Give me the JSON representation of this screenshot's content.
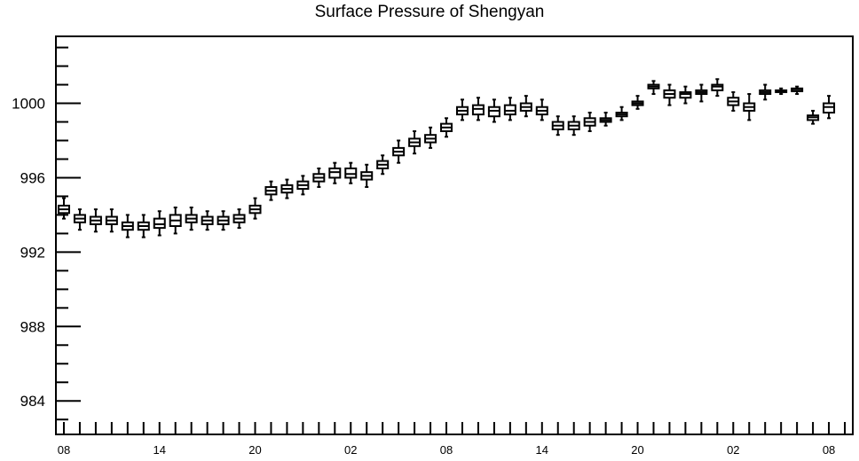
{
  "chart_data": {
    "type": "boxplot",
    "title": "Surface Pressure of Shengyan",
    "xlabel": "",
    "ylabel": "",
    "ylim": [
      982.2,
      1003.6
    ],
    "yticks": [
      984,
      988,
      992,
      996,
      1000
    ],
    "ytick_labels": [
      "984",
      "988",
      "992",
      "996",
      "1000"
    ],
    "xlim": [
      -0.5,
      49.5
    ],
    "xtick_positions": [
      0,
      6,
      12,
      18,
      24,
      30,
      36,
      42,
      48
    ],
    "xtick_labels": [
      "08",
      "14",
      "20",
      "02",
      "08",
      "14",
      "20",
      "02",
      "08"
    ],
    "grid": false,
    "boxes": [
      {
        "index": 0,
        "min": 993.8,
        "q1": 994.1,
        "median": 994.3,
        "q3": 994.5,
        "max": 994.9
      },
      {
        "index": 1,
        "min": 993.2,
        "q1": 993.6,
        "median": 993.8,
        "q3": 994.0,
        "max": 994.3
      },
      {
        "index": 2,
        "min": 993.1,
        "q1": 993.5,
        "median": 993.7,
        "q3": 993.9,
        "max": 994.3
      },
      {
        "index": 3,
        "min": 993.1,
        "q1": 993.5,
        "median": 993.7,
        "q3": 993.9,
        "max": 994.3
      },
      {
        "index": 4,
        "min": 992.8,
        "q1": 993.2,
        "median": 993.4,
        "q3": 993.6,
        "max": 994.0
      },
      {
        "index": 5,
        "min": 992.8,
        "q1": 993.2,
        "median": 993.4,
        "q3": 993.6,
        "max": 994.0
      },
      {
        "index": 6,
        "min": 992.9,
        "q1": 993.3,
        "median": 993.5,
        "q3": 993.8,
        "max": 994.2
      },
      {
        "index": 7,
        "min": 993.0,
        "q1": 993.4,
        "median": 993.7,
        "q3": 994.0,
        "max": 994.4
      },
      {
        "index": 8,
        "min": 993.2,
        "q1": 993.6,
        "median": 993.8,
        "q3": 994.0,
        "max": 994.4
      },
      {
        "index": 9,
        "min": 993.2,
        "q1": 993.5,
        "median": 993.7,
        "q3": 993.9,
        "max": 994.2
      },
      {
        "index": 10,
        "min": 993.2,
        "q1": 993.5,
        "median": 993.7,
        "q3": 993.9,
        "max": 994.2
      },
      {
        "index": 11,
        "min": 993.3,
        "q1": 993.6,
        "median": 993.8,
        "q3": 994.0,
        "max": 994.3
      },
      {
        "index": 12,
        "min": 993.8,
        "q1": 994.1,
        "median": 994.3,
        "q3": 994.5,
        "max": 994.9
      },
      {
        "index": 13,
        "min": 994.8,
        "q1": 995.1,
        "median": 995.3,
        "q3": 995.5,
        "max": 995.8
      },
      {
        "index": 14,
        "min": 994.9,
        "q1": 995.2,
        "median": 995.4,
        "q3": 995.6,
        "max": 995.9
      },
      {
        "index": 15,
        "min": 995.1,
        "q1": 995.4,
        "median": 995.6,
        "q3": 995.8,
        "max": 996.1
      },
      {
        "index": 16,
        "min": 995.5,
        "q1": 995.8,
        "median": 996.0,
        "q3": 996.2,
        "max": 996.5
      },
      {
        "index": 17,
        "min": 995.7,
        "q1": 996.0,
        "median": 996.3,
        "q3": 996.5,
        "max": 996.8
      },
      {
        "index": 18,
        "min": 995.7,
        "q1": 996.0,
        "median": 996.2,
        "q3": 996.5,
        "max": 996.8
      },
      {
        "index": 19,
        "min": 995.5,
        "q1": 995.9,
        "median": 996.1,
        "q3": 996.3,
        "max": 996.7
      },
      {
        "index": 20,
        "min": 996.2,
        "q1": 996.5,
        "median": 996.7,
        "q3": 996.9,
        "max": 997.2
      },
      {
        "index": 21,
        "min": 996.8,
        "q1": 997.2,
        "median": 997.4,
        "q3": 997.6,
        "max": 998.0
      },
      {
        "index": 22,
        "min": 997.3,
        "q1": 997.7,
        "median": 997.9,
        "q3": 998.1,
        "max": 998.5
      },
      {
        "index": 23,
        "min": 997.6,
        "q1": 997.9,
        "median": 998.1,
        "q3": 998.3,
        "max": 998.7
      },
      {
        "index": 24,
        "min": 998.2,
        "q1": 998.5,
        "median": 998.7,
        "q3": 998.9,
        "max": 999.2
      },
      {
        "index": 25,
        "min": 999.1,
        "q1": 999.4,
        "median": 999.6,
        "q3": 999.8,
        "max": 1000.2
      },
      {
        "index": 26,
        "min": 999.1,
        "q1": 999.4,
        "median": 999.7,
        "q3": 999.9,
        "max": 1000.3
      },
      {
        "index": 27,
        "min": 999.0,
        "q1": 999.3,
        "median": 999.6,
        "q3": 999.8,
        "max": 1000.2
      },
      {
        "index": 28,
        "min": 999.1,
        "q1": 999.4,
        "median": 999.6,
        "q3": 999.9,
        "max": 1000.3
      },
      {
        "index": 29,
        "min": 999.3,
        "q1": 999.6,
        "median": 999.8,
        "q3": 1000.0,
        "max": 1000.4
      },
      {
        "index": 30,
        "min": 999.1,
        "q1": 999.4,
        "median": 999.6,
        "q3": 999.8,
        "max": 1000.2
      },
      {
        "index": 31,
        "min": 998.3,
        "q1": 998.6,
        "median": 998.8,
        "q3": 999.0,
        "max": 999.3
      },
      {
        "index": 32,
        "min": 998.3,
        "q1": 998.6,
        "median": 998.8,
        "q3": 999.0,
        "max": 999.3
      },
      {
        "index": 33,
        "min": 998.5,
        "q1": 998.8,
        "median": 999.0,
        "q3": 999.2,
        "max": 999.5
      },
      {
        "index": 34,
        "min": 998.8,
        "q1": 999.0,
        "median": 999.1,
        "q3": 999.2,
        "max": 999.5
      },
      {
        "index": 35,
        "min": 999.1,
        "q1": 999.3,
        "median": 999.4,
        "q3": 999.5,
        "max": 999.8
      },
      {
        "index": 36,
        "min": 999.7,
        "q1": 999.9,
        "median": 1000.0,
        "q3": 1000.1,
        "max": 1000.4
      },
      {
        "index": 37,
        "min": 1000.5,
        "q1": 1000.8,
        "median": 1000.9,
        "q3": 1001.0,
        "max": 1001.2
      },
      {
        "index": 38,
        "min": 999.9,
        "q1": 1000.3,
        "median": 1000.5,
        "q3": 1000.7,
        "max": 1001.0
      },
      {
        "index": 39,
        "min": 1000.0,
        "q1": 1000.3,
        "median": 1000.5,
        "q3": 1000.6,
        "max": 1000.9
      },
      {
        "index": 40,
        "min": 1000.1,
        "q1": 1000.5,
        "median": 1000.6,
        "q3": 1000.7,
        "max": 1001.0
      },
      {
        "index": 41,
        "min": 1000.4,
        "q1": 1000.7,
        "median": 1000.9,
        "q3": 1001.0,
        "max": 1001.3
      },
      {
        "index": 42,
        "min": 999.6,
        "q1": 999.9,
        "median": 1000.1,
        "q3": 1000.3,
        "max": 1000.6
      },
      {
        "index": 43,
        "min": 999.1,
        "q1": 999.6,
        "median": 999.8,
        "q3": 1000.0,
        "max": 1000.5
      },
      {
        "index": 44,
        "min": 1000.2,
        "q1": 1000.5,
        "median": 1000.6,
        "q3": 1000.7,
        "max": 1001.0
      },
      {
        "index": 45,
        "min": 1000.5,
        "q1": 1000.6,
        "median": 1000.65,
        "q3": 1000.7,
        "max": 1000.8
      },
      {
        "index": 46,
        "min": 1000.5,
        "q1": 1000.65,
        "median": 1000.75,
        "q3": 1000.8,
        "max": 1000.9
      },
      {
        "index": 47,
        "min": 998.9,
        "q1": 999.1,
        "median": 999.25,
        "q3": 999.35,
        "max": 999.6
      },
      {
        "index": 48,
        "min": 999.2,
        "q1": 999.5,
        "median": 999.8,
        "q3": 1000.0,
        "max": 1000.4
      }
    ]
  }
}
